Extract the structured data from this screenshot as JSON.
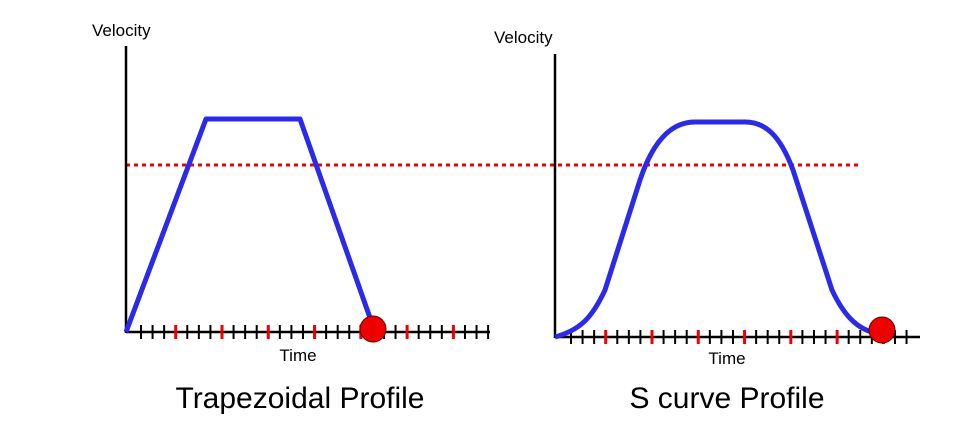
{
  "left": {
    "y_axis_label": "Velocity",
    "x_axis_label": "Time",
    "title": "Trapezoidal Profile"
  },
  "right": {
    "y_axis_label": "Velocity",
    "x_axis_label": "Time",
    "title": "S curve Profile"
  }
}
